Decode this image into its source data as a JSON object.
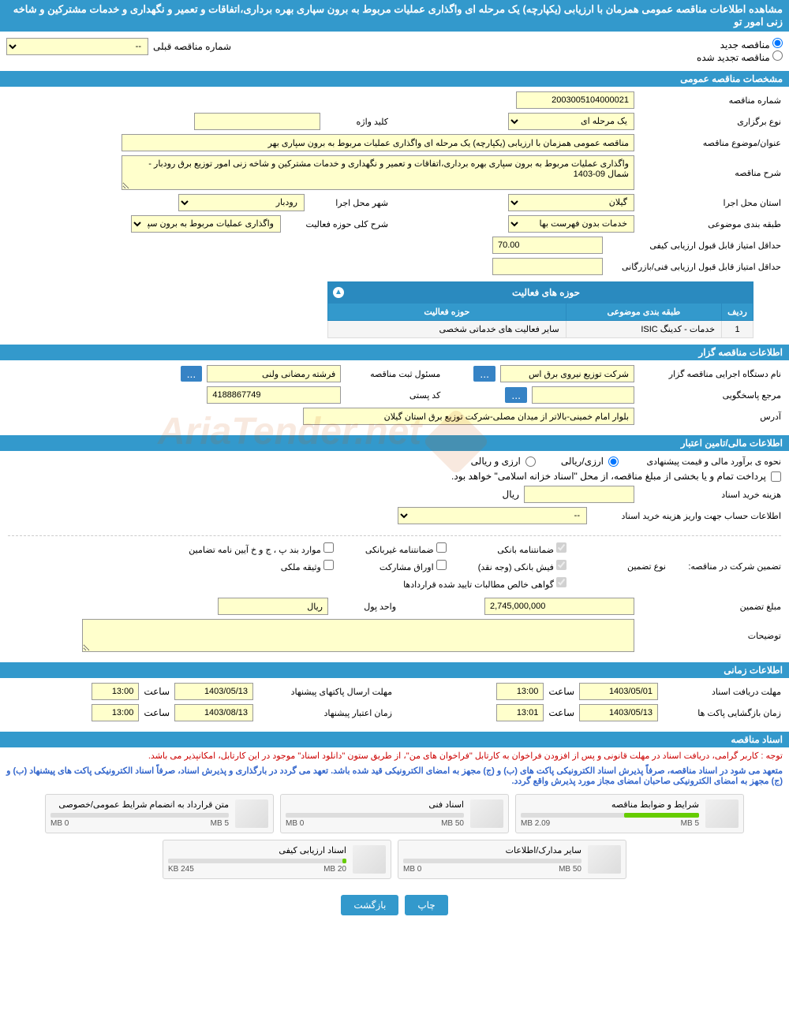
{
  "header": {
    "title": "مشاهده اطلاعات مناقصه عمومی همزمان با ارزیابی (یکپارچه) یک مرحله ای واگذاری عملیات مربوط به برون سپاری بهره برداری،اتفاقات و تعمیر و نگهداری و خدمات مشترکین و شاخه زنی امور تو"
  },
  "tender_type": {
    "opt_new": "مناقصه جدید",
    "opt_renewed": "مناقصه تجدید شده",
    "prev_number_label": "شماره مناقصه قبلی",
    "prev_number_value": "--"
  },
  "sections": {
    "general": "مشخصات مناقصه عمومی",
    "organizer": "اطلاعات مناقصه گزار",
    "financial": "اطلاعات مالی/تامین اعتبار",
    "timing": "اطلاعات زمانی",
    "documents": "اسناد مناقصه"
  },
  "general": {
    "tender_number_label": "شماره مناقصه",
    "tender_number": "2003005104000021",
    "holding_type_label": "نوع برگزاری",
    "holding_type": "یک مرحله ای",
    "keyword_label": "کلید واژه",
    "keyword": "",
    "title_label": "عنوان/موضوع مناقصه",
    "title": "مناقصه عمومی همزمان با ارزیابی (یکپارچه) یک مرحله ای واگذاری عملیات مربوط به برون سپاری بهر",
    "description_label": "شرح مناقصه",
    "description": "واگذاری عملیات مربوط به برون سپاری بهره برداری،اتفاقات و تعمیر و نگهداری و خدمات مشترکین و شاخه زنی امور توزیع برق رودبار - شمال 09-1403",
    "province_label": "استان محل اجرا",
    "province": "گیلان",
    "city_label": "شهر محل اجرا",
    "city": "رودبار",
    "category_label": "طبقه بندی موضوعی",
    "category": "خدمات بدون فهرست بها",
    "activity_desc_label": "شرح کلی حوزه فعالیت",
    "activity_desc": "واگذاری عملیات مربوط به برون سپاری بهره",
    "min_quality_score_label": "حداقل امتیاز قابل قبول ارزیابی کیفی",
    "min_quality_score": "70.00",
    "min_tech_score_label": "حداقل امتیاز قابل قبول ارزیابی فنی/بازرگانی",
    "min_tech_score": ""
  },
  "activity_table": {
    "title": "حوزه های فعالیت",
    "col_row": "ردیف",
    "col_category": "طبقه بندی موضوعی",
    "col_domain": "حوزه فعالیت",
    "row1_num": "1",
    "row1_category": "خدمات - کدینگ ISIC",
    "row1_domain": "سایر فعالیت های خدماتی شخصی"
  },
  "organizer": {
    "org_label": "نام دستگاه اجرایی مناقصه گزار",
    "org_name": "شرکت توزیع نیروی برق اس",
    "reg_official_label": "مسئول ثبت مناقصه",
    "reg_official": "فرشته رمضانی ولنی",
    "response_ref_label": "مرجع پاسخگویی",
    "response_ref": "",
    "postal_label": "کد پستی",
    "postal": "4188867749",
    "address_label": "آدرس",
    "address": "بلوار امام خمینی-بالاتر از میدان مصلی-شرکت توزیع برق استان گیلان",
    "btn_more": "..."
  },
  "financial": {
    "estimate_method_label": "نحوه ی برآورد مالی و قیمت پیشنهادی",
    "opt_rial": "ارزی/ریالی",
    "opt_currency": "ارزی و ریالی",
    "payment_note": "پرداخت تمام و یا بخشی از مبلغ مناقصه، از محل \"اسناد خزانه اسلامی\" خواهد بود.",
    "doc_cost_label": "هزینه خرید اسناد",
    "doc_cost": "",
    "doc_cost_unit": "ریال",
    "account_info_label": "اطلاعات حساب جهت واریز هزینه خرید اسناد",
    "account_info": "--",
    "guarantee_intro": "تضمین شرکت در مناقصه:",
    "guarantee_type_label": "نوع تضمین",
    "chk_bank": "ضمانتنامه بانکی",
    "chk_nonbank": "ضمانتنامه غیربانکی",
    "chk_bond": "موارد بند پ ، ج و خ آیین نامه تضامین",
    "chk_cash": "فیش بانکی (وجه نقد)",
    "chk_securities": "اوراق مشارکت",
    "chk_property": "وثیقه ملکی",
    "chk_receivables": "گواهی خالص مطالبات تایید شده قراردادها",
    "guarantee_amount_label": "مبلغ تضمین",
    "guarantee_amount": "2,745,000,000",
    "currency_label": "واحد پول",
    "currency": "ریال",
    "notes_label": "توضیحات",
    "notes": ""
  },
  "timing": {
    "doc_deadline_label": "مهلت دریافت اسناد",
    "doc_deadline_date": "1403/05/01",
    "doc_deadline_time": "13:00",
    "proposal_deadline_label": "مهلت ارسال پاکتهای پیشنهاد",
    "proposal_deadline_date": "1403/05/13",
    "proposal_deadline_time": "13:00",
    "opening_label": "زمان بازگشایی پاکت ها",
    "opening_date": "1403/05/13",
    "opening_time": "13:01",
    "validity_label": "زمان اعتبار پیشنهاد",
    "validity_date": "1403/08/13",
    "validity_time": "13:00",
    "time_label": "ساعت"
  },
  "documents": {
    "notice1": "توجه : کاربر گرامی، دریافت اسناد در مهلت قانونی و پس از افزودن فراخوان به کارتابل \"فراخوان های من\"، از طریق ستون \"دانلود اسناد\" موجود در این کارتابل، امکانپذیر می باشد.",
    "notice2": "متعهد می شود در اسناد مناقصه، صرفاً پذیرش اسناد الکترونیکی پاکت های (ب) و (ج) مجهز به امضای الکترونیکی قید شده باشد. تعهد می گردد در بارگذاری و پذیرش اسناد، صرفاً اسناد الکترونیکی پاکت های پیشنهاد (ب) و (ج) مجهز به امضای الکترونیکی صاحبان امضای مجاز مورد پذیرش واقع گردد.",
    "files": [
      {
        "title": "شرایط و ضوابط مناقصه",
        "max": "5 MB",
        "used": "2.09 MB",
        "pct": 42
      },
      {
        "title": "اسناد فنی",
        "max": "50 MB",
        "used": "0 MB",
        "pct": 0
      },
      {
        "title": "متن قرارداد به انضمام شرایط عمومی/خصوصی",
        "max": "5 MB",
        "used": "0 MB",
        "pct": 0
      },
      {
        "title": "سایر مدارک/اطلاعات",
        "max": "50 MB",
        "used": "0 MB",
        "pct": 0
      },
      {
        "title": "اسناد ارزیابی کیفی",
        "max": "20 MB",
        "used": "245 KB",
        "pct": 2
      }
    ]
  },
  "buttons": {
    "print": "چاپ",
    "back": "بازگشت"
  },
  "watermark": "AriaTender.net",
  "colors": {
    "primary": "#3399cc",
    "input_bg": "#ffffcc",
    "notice_red": "#cc0000",
    "notice_blue": "#3366cc",
    "progress": "#66cc00"
  }
}
